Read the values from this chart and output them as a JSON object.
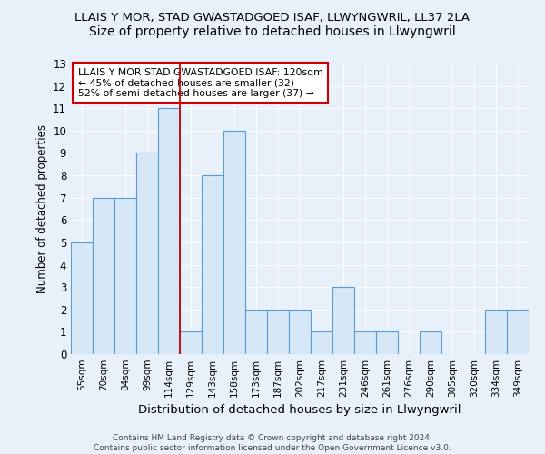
{
  "title1": "LLAIS Y MOR, STAD GWASTADGOED ISAF, LLWYNGWRIL, LL37 2LA",
  "title2": "Size of property relative to detached houses in Llwyngwril",
  "xlabel": "Distribution of detached houses by size in Llwyngwril",
  "ylabel": "Number of detached properties",
  "footer": "Contains HM Land Registry data © Crown copyright and database right 2024.\nContains public sector information licensed under the Open Government Licence v3.0.",
  "categories": [
    "55sqm",
    "70sqm",
    "84sqm",
    "99sqm",
    "114sqm",
    "129sqm",
    "143sqm",
    "158sqm",
    "173sqm",
    "187sqm",
    "202sqm",
    "217sqm",
    "231sqm",
    "246sqm",
    "261sqm",
    "276sqm",
    "290sqm",
    "305sqm",
    "320sqm",
    "334sqm",
    "349sqm"
  ],
  "values": [
    5,
    7,
    7,
    9,
    11,
    1,
    8,
    10,
    2,
    2,
    2,
    1,
    3,
    1,
    1,
    0,
    1,
    0,
    0,
    2,
    2
  ],
  "bar_color": "#d6e8f7",
  "bar_edge_color": "#5b9bd5",
  "red_line_x": 4.5,
  "annotation_title": "LLAIS Y MOR STAD GWASTADGOED ISAF: 120sqm",
  "annotation_line1": "← 45% of detached houses are smaller (32)",
  "annotation_line2": "52% of semi-detached houses are larger (37) →",
  "annotation_box_color": "#ffffff",
  "annotation_box_edge": "#cc0000",
  "ylim": [
    0,
    13
  ],
  "yticks": [
    0,
    1,
    2,
    3,
    4,
    5,
    6,
    7,
    8,
    9,
    10,
    11,
    12,
    13
  ],
  "background_color": "#e8f0fa",
  "grid_color": "#ffffff",
  "title1_fontsize": 9.5,
  "title2_fontsize": 10
}
